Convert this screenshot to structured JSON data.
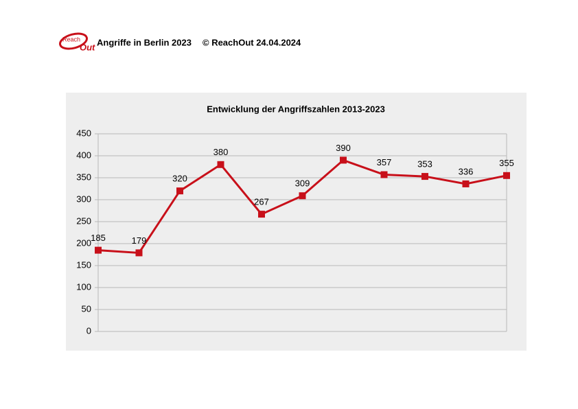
{
  "header": {
    "logo": {
      "top": "Reach",
      "bottom": "Out"
    },
    "title": "Angriffe in Berlin 2023",
    "source": "© ReachOut 24.04.2024"
  },
  "chart_data": {
    "type": "line",
    "title": "Entwicklung der Angriffszahlen 2013-2023",
    "categories": [
      null,
      null,
      null,
      null,
      null,
      null,
      null,
      null,
      null,
      null,
      null
    ],
    "series": [
      {
        "name": null,
        "color": "#c8101a",
        "values": [
          185,
          179,
          320,
          380,
          267,
          309,
          390,
          357,
          353,
          336,
          355
        ]
      }
    ],
    "ylim": [
      0,
      450
    ],
    "yticks": [
      0,
      50,
      100,
      150,
      200,
      250,
      300,
      350,
      400,
      450
    ],
    "grid": true,
    "data_labels": true
  }
}
